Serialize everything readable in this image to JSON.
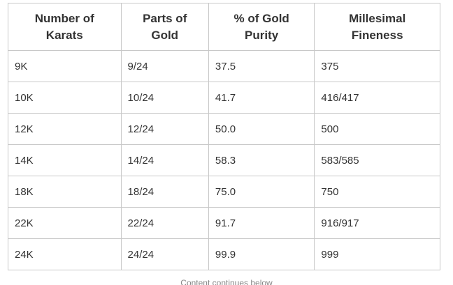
{
  "table": {
    "headers": [
      [
        "Number of",
        "Karats"
      ],
      [
        "Parts of",
        "Gold"
      ],
      [
        "% of Gold",
        "Purity"
      ],
      [
        "Millesimal",
        "Fineness"
      ]
    ],
    "rows": [
      [
        "9K",
        "9/24",
        "37.5",
        "375"
      ],
      [
        "10K",
        "10/24",
        "41.7",
        "416/417"
      ],
      [
        "12K",
        "12/24",
        "50.0",
        "500"
      ],
      [
        "14K",
        "14/24",
        "58.3",
        "583/585"
      ],
      [
        "18K",
        "18/24",
        "75.0",
        "750"
      ],
      [
        "22K",
        "22/24",
        "91.7",
        "916/917"
      ],
      [
        "24K",
        "24/24",
        "99.9",
        "999"
      ]
    ]
  },
  "footer": {
    "continues_label": "Content continues below"
  }
}
